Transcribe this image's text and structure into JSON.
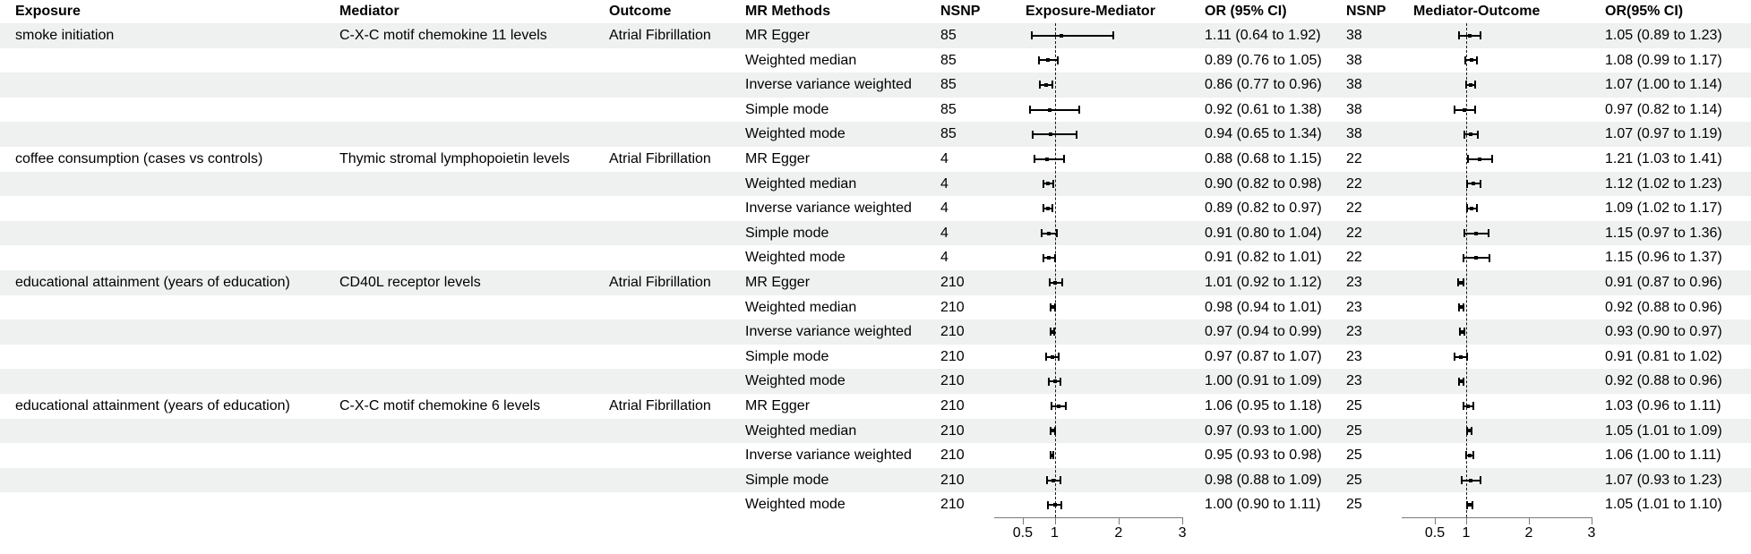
{
  "chart_data": {
    "type": "table",
    "title": "Mendelian randomization forest plot: exposure-mediator and mediator-outcome effects on Atrial Fibrillation",
    "columns": [
      "Exposure",
      "Mediator",
      "Outcome",
      "MR Methods",
      "NSNP",
      "Exposure-Mediator",
      "OR (95% CI)",
      "NSNP",
      "Mediator-Outcome",
      "OR(95% CI)"
    ],
    "axis": {
      "scale": "linear",
      "ticks": [
        0.5,
        1,
        2,
        3
      ],
      "tick_labels": [
        "0.5",
        "1",
        "2",
        "3"
      ],
      "xlim": [
        0.05,
        3.05
      ],
      "refline": 1,
      "grid": false
    },
    "rows": [
      {
        "exposure": "smoke initiation",
        "mediator": "C-X-C motif chemokine 11 levels",
        "outcome": "Atrial Fibrillation",
        "method": "MR Egger",
        "nsnp1": "85",
        "em": [
          1.11,
          0.64,
          1.92
        ],
        "or1": "1.11 (0.64 to 1.92)",
        "nsnp2": "38",
        "mo": [
          1.05,
          0.89,
          1.23
        ],
        "or2": "1.05 (0.89 to 1.23)"
      },
      {
        "exposure": "",
        "mediator": "",
        "outcome": "",
        "method": "Weighted median",
        "nsnp1": "85",
        "em": [
          0.89,
          0.76,
          1.05
        ],
        "or1": "0.89 (0.76 to 1.05)",
        "nsnp2": "38",
        "mo": [
          1.08,
          0.99,
          1.17
        ],
        "or2": "1.08 (0.99 to 1.17)"
      },
      {
        "exposure": "",
        "mediator": "",
        "outcome": "",
        "method": "Inverse variance weighted",
        "nsnp1": "85",
        "em": [
          0.86,
          0.77,
          0.96
        ],
        "or1": "0.86 (0.77 to 0.96)",
        "nsnp2": "38",
        "mo": [
          1.07,
          1.0,
          1.14
        ],
        "or2": "1.07 (1.00 to 1.14)"
      },
      {
        "exposure": "",
        "mediator": "",
        "outcome": "",
        "method": "Simple mode",
        "nsnp1": "85",
        "em": [
          0.92,
          0.61,
          1.38
        ],
        "or1": "0.92 (0.61 to 1.38)",
        "nsnp2": "38",
        "mo": [
          0.97,
          0.82,
          1.14
        ],
        "or2": "0.97 (0.82 to 1.14)"
      },
      {
        "exposure": "",
        "mediator": "",
        "outcome": "",
        "method": "Weighted mode",
        "nsnp1": "85",
        "em": [
          0.94,
          0.65,
          1.34
        ],
        "or1": "0.94 (0.65 to 1.34)",
        "nsnp2": "38",
        "mo": [
          1.07,
          0.97,
          1.19
        ],
        "or2": "1.07 (0.97 to 1.19)"
      },
      {
        "exposure": "coffee consumption (cases vs controls)",
        "mediator": "Thymic stromal lymphopoietin levels",
        "outcome": "Atrial Fibrillation",
        "method": "MR Egger",
        "nsnp1": "4",
        "em": [
          0.88,
          0.68,
          1.15
        ],
        "or1": "0.88 (0.68 to 1.15)",
        "nsnp2": "22",
        "mo": [
          1.21,
          1.03,
          1.41
        ],
        "or2": "1.21 (1.03 to 1.41)"
      },
      {
        "exposure": "",
        "mediator": "",
        "outcome": "",
        "method": "Weighted median",
        "nsnp1": "4",
        "em": [
          0.9,
          0.82,
          0.98
        ],
        "or1": "0.90 (0.82 to 0.98)",
        "nsnp2": "22",
        "mo": [
          1.12,
          1.02,
          1.23
        ],
        "or2": "1.12 (1.02 to 1.23)"
      },
      {
        "exposure": "",
        "mediator": "",
        "outcome": "",
        "method": "Inverse variance weighted",
        "nsnp1": "4",
        "em": [
          0.89,
          0.82,
          0.97
        ],
        "or1": "0.89 (0.82 to 0.97)",
        "nsnp2": "22",
        "mo": [
          1.09,
          1.02,
          1.17
        ],
        "or2": "1.09 (1.02 to 1.17)"
      },
      {
        "exposure": "",
        "mediator": "",
        "outcome": "",
        "method": "Simple mode",
        "nsnp1": "4",
        "em": [
          0.91,
          0.8,
          1.04
        ],
        "or1": "0.91 (0.80 to 1.04)",
        "nsnp2": "22",
        "mo": [
          1.15,
          0.97,
          1.36
        ],
        "or2": "1.15 (0.97 to 1.36)"
      },
      {
        "exposure": "",
        "mediator": "",
        "outcome": "",
        "method": "Weighted mode",
        "nsnp1": "4",
        "em": [
          0.91,
          0.82,
          1.01
        ],
        "or1": "0.91 (0.82 to 1.01)",
        "nsnp2": "22",
        "mo": [
          1.15,
          0.96,
          1.37
        ],
        "or2": "1.15 (0.96 to 1.37)"
      },
      {
        "exposure": "educational attainment (years of education)",
        "mediator": "CD40L receptor levels",
        "outcome": "Atrial Fibrillation",
        "method": "MR Egger",
        "nsnp1": "210",
        "em": [
          1.01,
          0.92,
          1.12
        ],
        "or1": "1.01 (0.92 to 1.12)",
        "nsnp2": "23",
        "mo": [
          0.91,
          0.87,
          0.96
        ],
        "or2": "0.91 (0.87 to 0.96)"
      },
      {
        "exposure": "",
        "mediator": "",
        "outcome": "",
        "method": "Weighted median",
        "nsnp1": "210",
        "em": [
          0.98,
          0.94,
          1.01
        ],
        "or1": "0.98 (0.94 to 1.01)",
        "nsnp2": "23",
        "mo": [
          0.92,
          0.88,
          0.96
        ],
        "or2": "0.92 (0.88 to 0.96)"
      },
      {
        "exposure": "",
        "mediator": "",
        "outcome": "",
        "method": "Inverse variance weighted",
        "nsnp1": "210",
        "em": [
          0.97,
          0.94,
          0.99
        ],
        "or1": "0.97 (0.94 to 0.99)",
        "nsnp2": "23",
        "mo": [
          0.93,
          0.9,
          0.97
        ],
        "or2": "0.93 (0.90 to 0.97)"
      },
      {
        "exposure": "",
        "mediator": "",
        "outcome": "",
        "method": "Simple mode",
        "nsnp1": "210",
        "em": [
          0.97,
          0.87,
          1.07
        ],
        "or1": "0.97 (0.87 to 1.07)",
        "nsnp2": "23",
        "mo": [
          0.91,
          0.81,
          1.02
        ],
        "or2": "0.91 (0.81 to 1.02)"
      },
      {
        "exposure": "",
        "mediator": "",
        "outcome": "",
        "method": "Weighted mode",
        "nsnp1": "210",
        "em": [
          1.0,
          0.91,
          1.09
        ],
        "or1": "1.00 (0.91 to 1.09)",
        "nsnp2": "23",
        "mo": [
          0.92,
          0.88,
          0.96
        ],
        "or2": "0.92 (0.88 to 0.96)"
      },
      {
        "exposure": "educational attainment (years of education)",
        "mediator": "C-X-C motif chemokine 6 levels",
        "outcome": "Atrial Fibrillation",
        "method": "MR Egger",
        "nsnp1": "210",
        "em": [
          1.06,
          0.95,
          1.18
        ],
        "or1": "1.06 (0.95 to 1.18)",
        "nsnp2": "25",
        "mo": [
          1.03,
          0.96,
          1.11
        ],
        "or2": "1.03 (0.96 to 1.11)"
      },
      {
        "exposure": "",
        "mediator": "",
        "outcome": "",
        "method": "Weighted median",
        "nsnp1": "210",
        "em": [
          0.97,
          0.93,
          1.0
        ],
        "or1": "0.97 (0.93 to 1.00)",
        "nsnp2": "25",
        "mo": [
          1.05,
          1.01,
          1.09
        ],
        "or2": "1.05 (1.01 to 1.09)"
      },
      {
        "exposure": "",
        "mediator": "",
        "outcome": "",
        "method": "Inverse variance weighted",
        "nsnp1": "210",
        "em": [
          0.95,
          0.93,
          0.98
        ],
        "or1": "0.95 (0.93 to 0.98)",
        "nsnp2": "25",
        "mo": [
          1.06,
          1.0,
          1.11
        ],
        "or2": "1.06 (1.00 to 1.11)"
      },
      {
        "exposure": "",
        "mediator": "",
        "outcome": "",
        "method": "Simple mode",
        "nsnp1": "210",
        "em": [
          0.98,
          0.88,
          1.09
        ],
        "or1": "0.98 (0.88 to 1.09)",
        "nsnp2": "25",
        "mo": [
          1.07,
          0.93,
          1.23
        ],
        "or2": "1.07 (0.93 to 1.23)"
      },
      {
        "exposure": "",
        "mediator": "",
        "outcome": "",
        "method": "Weighted mode",
        "nsnp1": "210",
        "em": [
          1.0,
          0.9,
          1.11
        ],
        "or1": "1.00 (0.90 to 1.11)",
        "nsnp2": "25",
        "mo": [
          1.05,
          1.01,
          1.1
        ],
        "or2": "1.05 (1.01 to 1.10)"
      }
    ]
  },
  "colors": {
    "stripe": "#eef1ef",
    "text": "#000000",
    "bar": "#000000",
    "axis_line": "#7a7a7a",
    "refline": "#1a1a1a",
    "background": "#ffffff"
  }
}
